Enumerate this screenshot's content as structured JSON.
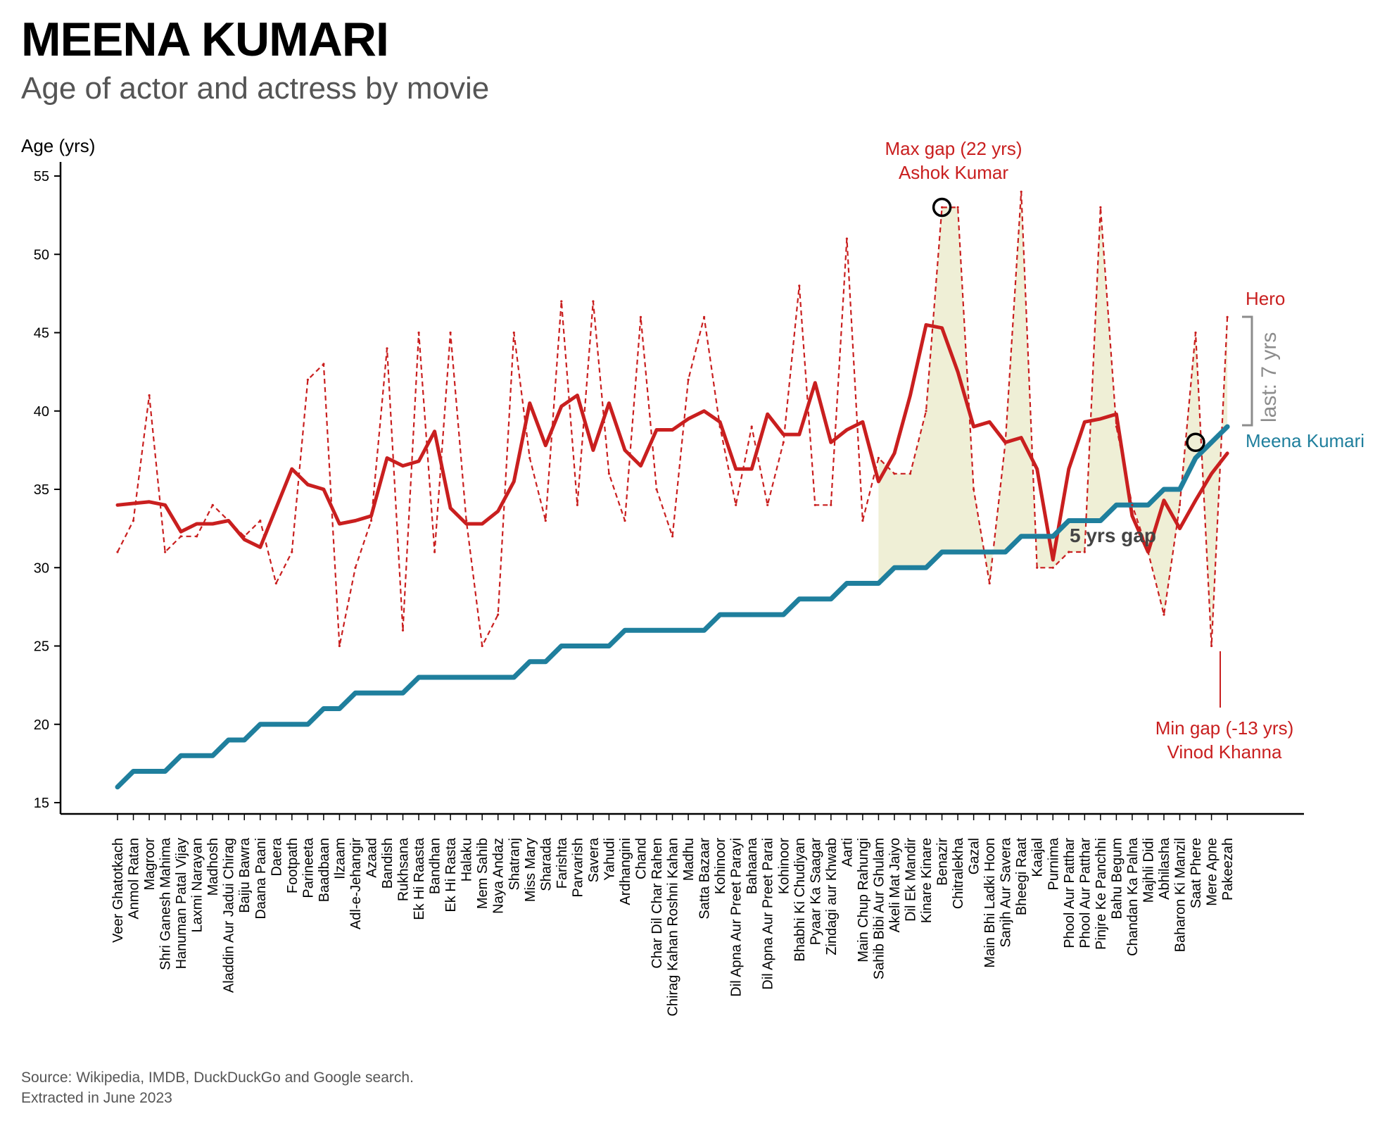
{
  "header": {
    "title": "MEENA KUMARI",
    "subtitle": "Age of actor and actress by movie"
  },
  "source": {
    "line1": "Source: Wikipedia, IMDB, DuckDuckGo and Google search.",
    "line2": "Extracted in June 2023"
  },
  "colors": {
    "actress": "#1f7f9d",
    "hero": "#c91f1f",
    "gap_fill": "#efefd6",
    "last_bracket": "#8c8c8c",
    "gap_label": "#444444"
  },
  "annotations": {
    "max_gap_line1": "Max gap (22 yrs)",
    "max_gap_line2": "Ashok Kumar",
    "min_gap_line1": "Min gap (-13 yrs)",
    "min_gap_line2": "Vinod Khanna",
    "hero_label": "Hero",
    "actress_label": "Meena Kumari",
    "recent_gap_label": "5 yrs gap",
    "last_gap_label": "last: 7 yrs"
  },
  "chart_data": {
    "type": "line",
    "title": "MEENA KUMARI",
    "subtitle": "Age of actor and actress by movie",
    "ylabel": "Age (yrs)",
    "xlabel": "",
    "ylim": [
      14,
      56
    ],
    "yticks": [
      15,
      20,
      25,
      30,
      35,
      40,
      45,
      50,
      55
    ],
    "grid": false,
    "categories": [
      "Veer Ghatotkach",
      "Anmol Ratan",
      "Magroor",
      "Shri Ganesh Mahima",
      "Hanuman Patal Vijay",
      "Laxmi Narayan",
      "Madhosh",
      "Aladdin Aur Jadui Chirag",
      "Baiju Bawra",
      "Daana Paani",
      "Daera",
      "Footpath",
      "Parineeta",
      "Baadbaan",
      "Ilzaam",
      "Adl-e-Jehangir",
      "Azaad",
      "Bandish",
      "Rukhsana",
      "Ek Hi Raasta",
      "Bandhan",
      "Ek Hi Rasta",
      "Halaku",
      "Mem Sahib",
      "Naya Andaz",
      "Shatranj",
      "Miss Mary",
      "Sharada",
      "Farishta",
      "Parvarish",
      "Savera",
      "Yahudi",
      "Ardhangini",
      "Chand",
      "Char Dil Char Rahen",
      "Chirag Kahan Roshni Kahan",
      "Madhu",
      "Satta Bazaar",
      "Kohinoor",
      "Dil Apna Aur Preet Parayi",
      "Bahaana",
      "Dil Apna Aur Preet Parai",
      "Kohinoor",
      "Bhabhi Ki Chudiyan",
      "Pyaar Ka Saagar",
      "Zindagi aur Khwab",
      "Aarti",
      "Main Chup Rahungi",
      "Sahib Bibi Aur Ghulam",
      "Akeli Mat Jaiyo",
      "Dil Ek Mandir",
      "Kinare Kinare",
      "Benazir",
      "Chitralekha",
      "Gazal",
      "Main Bhi Ladki Hoon",
      "Sanjh Aur Savera",
      "Bheegi Raat",
      "Kaajal",
      "Purnima",
      "Phool Aur Patthar",
      "Phool Aur Patthar",
      "Pinjre Ke Panchhi",
      "Bahu Begum",
      "Chandan Ka Palna",
      "Majhli Didi",
      "Abhilasha",
      "Baharon Ki Manzil",
      "Saat Phere",
      "Mere Apne",
      "Pakeezah"
    ],
    "series": [
      {
        "name": "Meena Kumari",
        "style": "solid-thick",
        "values": [
          16,
          17,
          17,
          17,
          18,
          18,
          18,
          19,
          19,
          20,
          20,
          20,
          20,
          21,
          21,
          22,
          22,
          22,
          22,
          23,
          23,
          23,
          23,
          23,
          23,
          23,
          24,
          24,
          25,
          25,
          25,
          25,
          26,
          26,
          26,
          26,
          26,
          26,
          27,
          27,
          27,
          27,
          27,
          28,
          28,
          28,
          29,
          29,
          29,
          30,
          30,
          30,
          31,
          31,
          31,
          31,
          31,
          32,
          32,
          32,
          33,
          33,
          33,
          34,
          34,
          34,
          35,
          35,
          37,
          38,
          39
        ]
      },
      {
        "name": "Hero",
        "style": "dashed",
        "values": [
          31,
          33,
          41,
          31,
          32,
          32,
          34,
          33,
          32,
          33,
          29,
          31,
          42,
          43,
          25,
          30,
          33,
          44,
          26,
          45,
          31,
          45,
          33,
          25,
          27,
          45,
          37,
          33,
          47,
          34,
          47,
          36,
          33,
          46,
          35,
          32,
          42,
          46,
          39,
          34,
          39,
          34,
          38,
          48,
          34,
          34,
          51,
          33,
          37,
          36,
          36,
          40,
          53,
          53,
          35,
          29,
          38,
          54,
          30,
          30,
          31,
          31,
          53,
          39,
          34,
          31,
          27,
          34,
          45,
          25,
          46
        ]
      },
      {
        "name": "Hero",
        "style": "solid-rolling",
        "values": [
          34.0,
          34.1,
          34.2,
          34.0,
          32.3,
          32.8,
          32.8,
          33.0,
          31.8,
          31.3,
          33.8,
          36.3,
          35.3,
          35.0,
          32.8,
          33.0,
          33.3,
          37.0,
          36.5,
          36.8,
          38.7,
          33.8,
          32.8,
          32.8,
          33.6,
          35.5,
          40.5,
          37.8,
          40.3,
          41.0,
          37.5,
          40.5,
          37.5,
          36.5,
          38.8,
          38.8,
          39.5,
          40.0,
          39.3,
          36.3,
          36.3,
          39.8,
          38.5,
          38.5,
          41.8,
          38.0,
          38.8,
          39.3,
          35.5,
          37.3,
          41.0,
          45.5,
          45.3,
          42.5,
          39.0,
          39.3,
          38.0,
          38.3,
          36.3,
          30.5,
          36.3,
          39.3,
          39.5,
          39.8,
          33.3,
          31.0,
          34.3,
          32.5,
          34.3,
          36.0,
          37.3
        ]
      }
    ],
    "shaded_gap_from_index": 48,
    "highlighted_points": [
      {
        "category": "Benazir",
        "series": "Hero",
        "value": 53
      },
      {
        "category": "Saat Phere",
        "series": "Meena Kumari",
        "value": 38
      }
    ]
  }
}
